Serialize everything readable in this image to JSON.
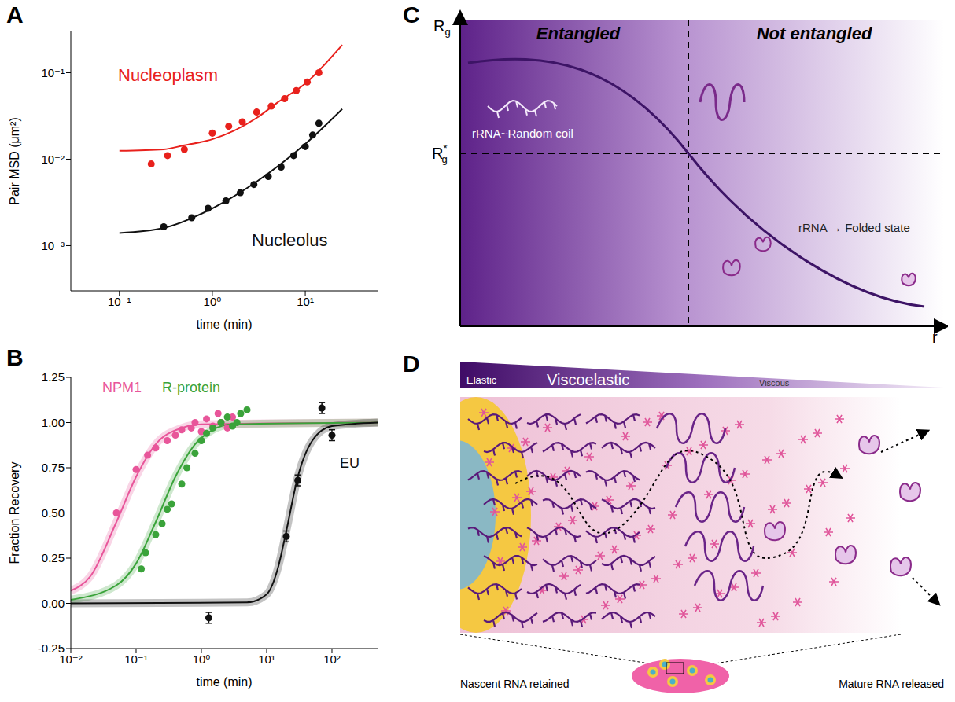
{
  "chart_data": [
    {
      "panel": "A",
      "type": "scatter",
      "log": true,
      "x_label": "time (min)",
      "y_label": "Pair MSD (μm²)",
      "xlim": [
        0.03,
        60
      ],
      "ylim": [
        0.0003,
        0.3
      ],
      "xticks": [
        {
          "value": 0.1,
          "label": "10⁻¹"
        },
        {
          "value": 1,
          "label": "10⁰"
        },
        {
          "value": 10,
          "label": "10¹"
        }
      ],
      "yticks": [
        {
          "value": 0.001,
          "label": "10⁻³"
        },
        {
          "value": 0.01,
          "label": "10⁻²"
        },
        {
          "value": 0.1,
          "label": "10⁻¹"
        }
      ],
      "series": [
        {
          "name": "Nucleoplasm",
          "color": "#e8211c",
          "marker": "circle",
          "line_style": "solid",
          "x": [
            0.22,
            0.33,
            0.5,
            1.0,
            1.5,
            2.1,
            3.0,
            4.3,
            6.0,
            8.0,
            10.5,
            14.0
          ],
          "values": [
            0.0088,
            0.011,
            0.013,
            0.02,
            0.024,
            0.027,
            0.035,
            0.041,
            0.05,
            0.062,
            0.078,
            0.1
          ],
          "fit": {
            "x": [
              0.1,
              0.3,
              0.5,
              1,
              3,
              5,
              10,
              25
            ],
            "values": [
              0.0125,
              0.013,
              0.0145,
              0.017,
              0.03,
              0.045,
              0.075,
              0.21
            ]
          }
        },
        {
          "name": "Nucleolus",
          "color": "#111111",
          "marker": "circle",
          "line_style": "solid",
          "x": [
            0.3,
            0.6,
            0.9,
            1.4,
            2.0,
            2.8,
            4.0,
            5.5,
            7.5,
            10.0,
            12.0,
            14.0
          ],
          "values": [
            0.00165,
            0.0021,
            0.0027,
            0.0033,
            0.0041,
            0.0051,
            0.0063,
            0.0081,
            0.011,
            0.014,
            0.019,
            0.026
          ],
          "fit": {
            "x": [
              0.1,
              0.3,
              1,
              3,
              10,
              25
            ],
            "values": [
              0.0014,
              0.0016,
              0.0027,
              0.0055,
              0.015,
              0.038
            ]
          }
        }
      ]
    },
    {
      "panel": "B",
      "type": "scatter",
      "log": "x",
      "x_label": "time (min)",
      "y_label": "Fraction Recovery",
      "xlim": [
        0.01,
        500
      ],
      "ylim": [
        -0.25,
        1.25
      ],
      "xticks": [
        {
          "value": 0.01,
          "label": "10⁻²"
        },
        {
          "value": 0.1,
          "label": "10⁻¹"
        },
        {
          "value": 1,
          "label": "10⁰"
        },
        {
          "value": 10,
          "label": "10¹"
        },
        {
          "value": 100,
          "label": "10²"
        }
      ],
      "yticks": [
        -0.25,
        {
          "value": 0,
          "label": "0.00"
        },
        0.25,
        {
          "value": 0.5,
          "label": "0.50"
        },
        0.75,
        {
          "value": 1,
          "label": "1.00"
        },
        1.25
      ],
      "series": [
        {
          "name": "NPM1",
          "color": "#e8569a",
          "marker": "circle",
          "line_style": "solid",
          "x": [
            0.05,
            0.1,
            0.15,
            0.2,
            0.3,
            0.4,
            0.5,
            0.7,
            0.8,
            1.0,
            1.2,
            1.5,
            1.8,
            2.0,
            2.5,
            3.0
          ],
          "values": [
            0.5,
            0.74,
            0.82,
            0.86,
            0.9,
            0.93,
            0.96,
            0.97,
            1.0,
            0.95,
            1.02,
            0.98,
            1.05,
            1.0,
            0.97,
            1.03
          ],
          "fit": {
            "x": [
              0.01,
              0.02,
              0.05,
              0.1,
              0.2,
              0.5,
              1,
              500
            ],
            "values": [
              0.07,
              0.15,
              0.45,
              0.7,
              0.88,
              0.97,
              0.99,
              1.0
            ]
          }
        },
        {
          "name": "R-protein",
          "color": "#3aa33a",
          "marker": "circle",
          "line_style": "solid",
          "x": [
            0.12,
            0.14,
            0.2,
            0.25,
            0.3,
            0.35,
            0.5,
            0.6,
            0.8,
            1.0,
            1.2,
            1.5,
            2.0,
            2.5,
            3.0,
            3.5,
            4.0,
            5.0
          ],
          "values": [
            0.19,
            0.28,
            0.38,
            0.44,
            0.52,
            0.55,
            0.66,
            0.75,
            0.83,
            0.9,
            0.94,
            0.97,
            1.0,
            1.03,
            0.98,
            1.0,
            1.05,
            1.07
          ],
          "fit": {
            "x": [
              0.01,
              0.05,
              0.1,
              0.2,
              0.4,
              0.8,
              1.5,
              3,
              500
            ],
            "values": [
              0.02,
              0.1,
              0.22,
              0.45,
              0.7,
              0.88,
              0.96,
              0.99,
              1.0
            ]
          }
        },
        {
          "name": "EU",
          "color": "#111111",
          "marker": "circle",
          "line_style": "solid",
          "x": [
            1.3,
            20,
            30,
            70,
            100
          ],
          "values": [
            -0.08,
            0.37,
            0.68,
            1.08,
            0.93
          ],
          "error": [
            0.03,
            0.03,
            0.03,
            0.03,
            0.03
          ],
          "fit": {
            "x": [
              0.01,
              5,
              10,
              15,
              20,
              30,
              50,
              100,
              500
            ],
            "values": [
              0.0,
              0.005,
              0.05,
              0.2,
              0.4,
              0.7,
              0.9,
              0.98,
              1.0
            ]
          }
        }
      ]
    }
  ],
  "diagram": {
    "C": {
      "panel": "C",
      "y_label": "R",
      "y_label_sub": "g",
      "threshold_label": "R",
      "threshold_sup": "*",
      "threshold_sub": "g",
      "x_label": "r",
      "regions": [
        "Entangled",
        "Not entangled"
      ],
      "annotations": [
        "rRNA~Random coil",
        "rRNA → Folded state"
      ]
    },
    "D": {
      "panel": "D",
      "gradient_labels": [
        "Elastic",
        "Viscoelastic",
        "Viscous"
      ],
      "captions": [
        "Nascent RNA retained",
        "Mature RNA released"
      ]
    }
  }
}
